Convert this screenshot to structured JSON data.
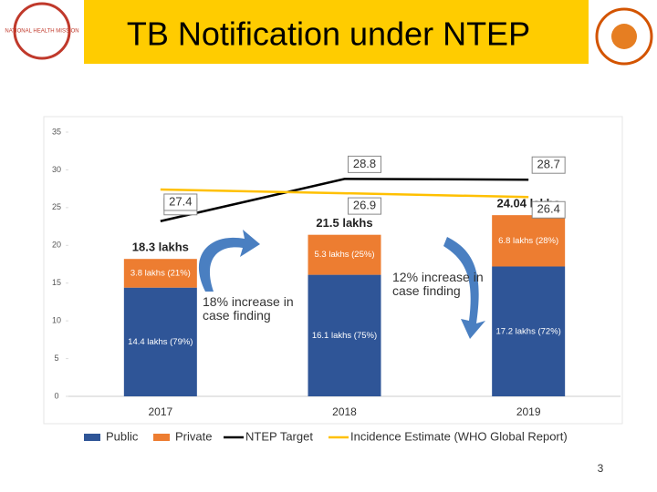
{
  "header": {
    "title": "TB Notification under NTEP",
    "logo_text": "NATIONAL HEALTH MISSION"
  },
  "page_number": "3",
  "chart_data": {
    "type": "bar",
    "categories": [
      "2017",
      "2018",
      "2019"
    ],
    "series": [
      {
        "name": "Public",
        "type": "bar",
        "color": "#2f5597",
        "values": [
          14.4,
          16.1,
          17.2
        ],
        "value_labels": [
          "14.4 lakhs (79%)",
          "16.1 lakhs (75%)",
          "17.2 lakhs (72%)"
        ]
      },
      {
        "name": "Private",
        "type": "bar",
        "color": "#ed7d31",
        "values": [
          3.8,
          5.3,
          6.8
        ],
        "value_labels": [
          "3.8 lakhs (21%)",
          "5.3 lakhs (25%)",
          "6.8 lakhs (28%)"
        ]
      },
      {
        "name": "NTEP Target",
        "type": "line",
        "color": "#000000",
        "values": [
          23.2,
          28.8,
          28.7
        ]
      },
      {
        "name": "Incidence Estimate (WHO Global Report)",
        "type": "line",
        "color": "#ffc000",
        "values": [
          27.4,
          26.9,
          26.4
        ]
      }
    ],
    "total_labels": [
      "18.3 lakhs",
      "21.5 lakhs",
      "24.04 lakhs"
    ],
    "annotations": [
      "18% increase in case finding",
      "12% increase in case finding"
    ],
    "ylim": [
      0,
      35
    ],
    "yticks": [
      0,
      5,
      10,
      15,
      20,
      25,
      30,
      35
    ],
    "grid": false
  }
}
